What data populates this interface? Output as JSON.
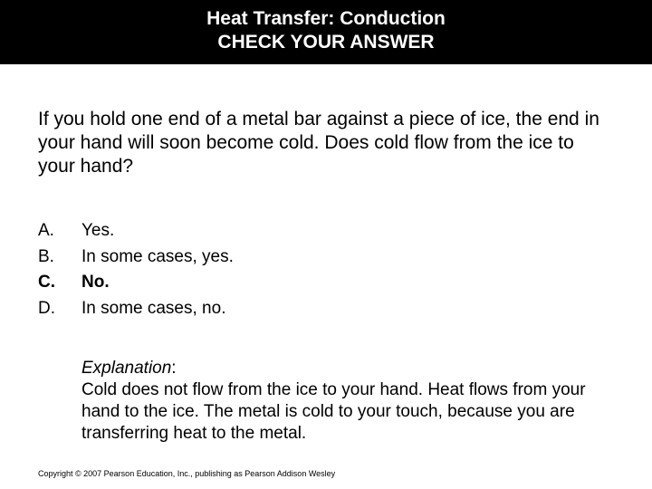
{
  "header": {
    "line1": "Heat Transfer: Conduction",
    "line2": "CHECK YOUR ANSWER"
  },
  "question": "If you hold one end of a metal bar against a piece of ice, the end in your hand will soon become cold. Does cold flow from the ice to your hand?",
  "options": [
    {
      "label": "A.",
      "text": "Yes.",
      "bold": false
    },
    {
      "label": "B.",
      "text": "In some cases, yes.",
      "bold": false
    },
    {
      "label": "C.",
      "text": "No.",
      "bold": true
    },
    {
      "label": "D.",
      "text": "In some cases, no.",
      "bold": false
    }
  ],
  "explanation": {
    "label": "Explanation",
    "text": "Cold does not flow from the ice to your hand. Heat flows from your hand to the ice. The metal is cold to your touch, because you are transferring heat to the metal."
  },
  "copyright": "Copyright © 2007 Pearson Education, Inc., publishing as Pearson Addison Wesley",
  "colors": {
    "header_bg": "#000000",
    "header_fg": "#ffffff",
    "body_bg": "#ffffff",
    "text": "#000000"
  }
}
